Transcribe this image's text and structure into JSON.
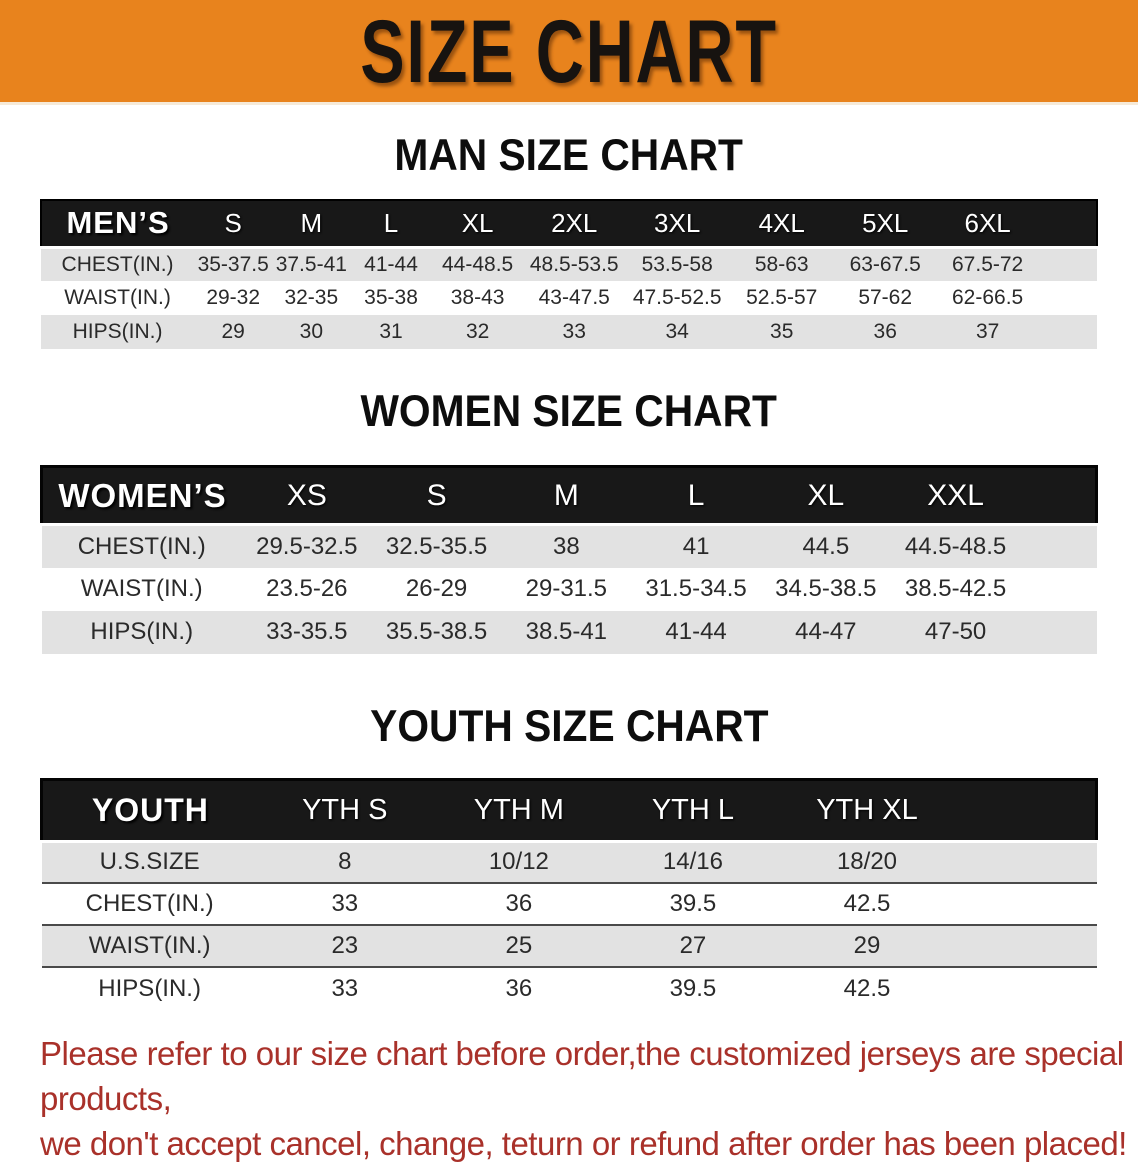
{
  "banner": {
    "title": "SIZE CHART",
    "bg_color": "#e8831d",
    "text_color": "#171310"
  },
  "men": {
    "heading": "MAN SIZE CHART",
    "corner": "MEN’S",
    "sizes": [
      "S",
      "M",
      "L",
      "XL",
      "2XL",
      "3XL",
      "4XL",
      "5XL",
      "6XL"
    ],
    "rows": [
      {
        "label": "CHEST(IN.)",
        "values": [
          "35-37.5",
          "37.5-41",
          "41-44",
          "44-48.5",
          "48.5-53.5",
          "53.5-58",
          "58-63",
          "63-67.5",
          "67.5-72"
        ]
      },
      {
        "label": "WAIST(IN.)",
        "values": [
          "29-32",
          "32-35",
          "35-38",
          "38-43",
          "43-47.5",
          "47.5-52.5",
          "52.5-57",
          "57-62",
          "62-66.5"
        ]
      },
      {
        "label": "HIPS(IN.)",
        "values": [
          "29",
          "30",
          "31",
          "32",
          "33",
          "34",
          "35",
          "36",
          "37"
        ]
      }
    ]
  },
  "women": {
    "heading": "WOMEN SIZE CHART",
    "corner": "WOMEN’S",
    "sizes": [
      "XS",
      "S",
      "M",
      "L",
      "XL",
      "XXL"
    ],
    "rows": [
      {
        "label": "CHEST(IN.)",
        "values": [
          "29.5-32.5",
          "32.5-35.5",
          "38",
          "41",
          "44.5",
          "44.5-48.5"
        ]
      },
      {
        "label": "WAIST(IN.)",
        "values": [
          "23.5-26",
          "26-29",
          "29-31.5",
          "31.5-34.5",
          "34.5-38.5",
          "38.5-42.5"
        ]
      },
      {
        "label": "HIPS(IN.)",
        "values": [
          "33-35.5",
          "35.5-38.5",
          "38.5-41",
          "41-44",
          "44-47",
          "47-50"
        ]
      }
    ]
  },
  "youth": {
    "heading": "YOUTH SIZE CHART",
    "corner": "YOUTH",
    "sizes": [
      "YTH S",
      "YTH M",
      "YTH L",
      "YTH XL"
    ],
    "rows": [
      {
        "label": "U.S.SIZE",
        "values": [
          "8",
          "10/12",
          "14/16",
          "18/20"
        ]
      },
      {
        "label": "CHEST(IN.)",
        "values": [
          "33",
          "36",
          "39.5",
          "42.5"
        ]
      },
      {
        "label": "WAIST(IN.)",
        "values": [
          "23",
          "25",
          "27",
          "29"
        ]
      },
      {
        "label": "HIPS(IN.)",
        "values": [
          "33",
          "36",
          "39.5",
          "42.5"
        ]
      }
    ]
  },
  "footer": {
    "line1": "Please refer to our size chart before order,the customized jerseys are special products,",
    "line2": "we don't accept cancel, change, teturn or refund after order has been placed!",
    "text_color": "#a9312a"
  }
}
